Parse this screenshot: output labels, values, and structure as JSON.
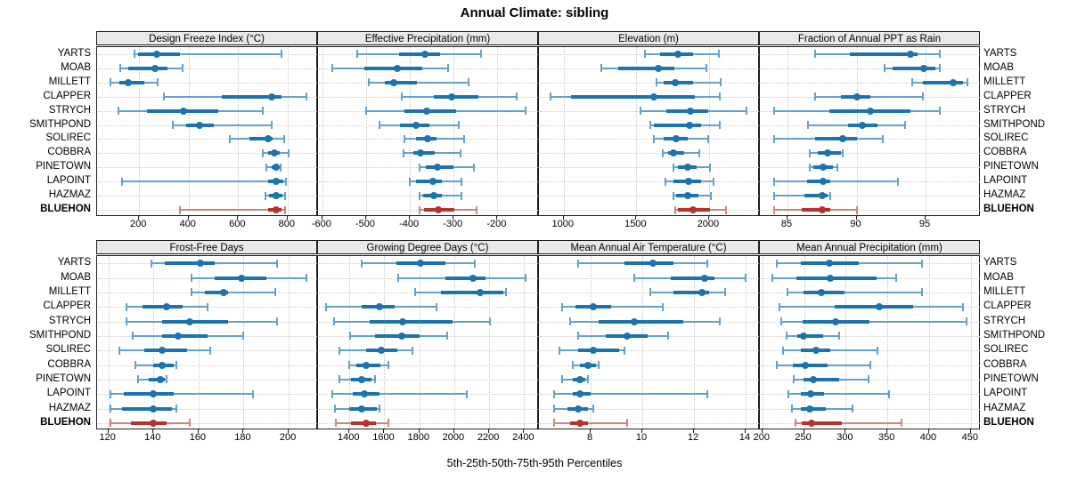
{
  "title": "Annual Climate: sibling",
  "caption": "5th-25th-50th-75th-95th Percentiles",
  "sites": [
    "YARTS",
    "MOAB",
    "MILLETT",
    "CLAPPER",
    "STRYCH",
    "SMITHPOND",
    "SOLIREC",
    "COBBRA",
    "PINETOWN",
    "LAPOINT",
    "HAZMAZ",
    "BLUEHON"
  ],
  "highlight_site": "BLUEHON",
  "colors": {
    "blue": "#1c73ad",
    "blue_light": "#62a2cc",
    "red": "#b6322e",
    "red_light": "#d4837f",
    "grid": "#c9c9c9",
    "strip_bg": "#e9e9e9",
    "border": "#1f1f1f"
  },
  "percentile_levels": [
    5,
    25,
    50,
    75,
    95
  ],
  "chart_data": [
    {
      "type": "dotplot-percentile",
      "row": 0,
      "col": 0,
      "slug": "design-freeze-index",
      "title": "Design Freeze Index (°C)",
      "xlim": [
        30,
        923
      ],
      "ticks": [
        200,
        400,
        600,
        800
      ],
      "values": [
        [
          180,
          195,
          270,
          365,
          775
        ],
        [
          125,
          155,
          265,
          315,
          375
        ],
        [
          85,
          120,
          155,
          220,
          275
        ],
        [
          300,
          535,
          735,
          775,
          875
        ],
        [
          115,
          230,
          380,
          520,
          700
        ],
        [
          335,
          390,
          445,
          500,
          735
        ],
        [
          565,
          645,
          720,
          740,
          785
        ],
        [
          700,
          720,
          745,
          770,
          805
        ],
        [
          715,
          735,
          753,
          762,
          770
        ],
        [
          131,
          723,
          754,
          784,
          795
        ],
        [
          710,
          725,
          754,
          780,
          791
        ],
        [
          365,
          720,
          752,
          775,
          788
        ]
      ]
    },
    {
      "type": "dotplot-percentile",
      "row": 0,
      "col": 1,
      "slug": "effective-precipitation",
      "title": "Effective Precipitation (mm)",
      "xlim": [
        -610,
        -105
      ],
      "ticks": [
        -600,
        -500,
        -400,
        -300,
        -200
      ],
      "values": [
        [
          -520,
          -425,
          -365,
          -330,
          -237
        ],
        [
          -577,
          -505,
          -428,
          -371,
          -313
        ],
        [
          -494,
          -458,
          -436,
          -384,
          -266
        ],
        [
          -418,
          -345,
          -305,
          -243,
          -155
        ],
        [
          -500,
          -413,
          -361,
          -295,
          -136
        ],
        [
          -470,
          -423,
          -385,
          -355,
          -289
        ],
        [
          -413,
          -387,
          -360,
          -340,
          -276
        ],
        [
          -414,
          -393,
          -375,
          -343,
          -284
        ],
        [
          -378,
          -363,
          -338,
          -300,
          -254
        ],
        [
          -401,
          -387,
          -347,
          -326,
          -282
        ],
        [
          -378,
          -370,
          -346,
          -326,
          -283
        ],
        [
          -377,
          -367,
          -336,
          -298,
          -248
        ]
      ]
    },
    {
      "type": "dotplot-percentile",
      "row": 0,
      "col": 2,
      "slug": "elevation",
      "title": "Elevation (m)",
      "xlim": [
        830,
        2350
      ],
      "ticks": [
        1000,
        1500,
        2000
      ],
      "values": [
        [
          1558,
          1661,
          1786,
          1893,
          2065
        ],
        [
          1258,
          1376,
          1651,
          1759,
          1983
        ],
        [
          1641,
          1686,
          1765,
          1893,
          2080
        ],
        [
          907,
          1052,
          1620,
          1904,
          2076
        ],
        [
          1531,
          1704,
          1870,
          1994,
          2259
        ],
        [
          1599,
          1621,
          1865,
          1943,
          2076
        ],
        [
          1620,
          1686,
          1773,
          1851,
          1994
        ],
        [
          1682,
          1717,
          1758,
          1831,
          1934
        ],
        [
          1758,
          1789,
          1851,
          1914,
          2004
        ],
        [
          1701,
          1758,
          1859,
          1943,
          2031
        ],
        [
          1758,
          1775,
          1853,
          1925,
          2014
        ],
        [
          1768,
          1789,
          1893,
          2004,
          2117
        ]
      ]
    },
    {
      "type": "dotplot-percentile",
      "row": 0,
      "col": 3,
      "slug": "fraction-ppt-as-rain",
      "title": "Fraction of Annual PPT as Rain",
      "xlim": [
        83,
        99
      ],
      "ticks": [
        85,
        90,
        95
      ],
      "values": [
        [
          87.0,
          89.5,
          93.9,
          94.4,
          96.0
        ],
        [
          92.0,
          92.6,
          94.9,
          95.7,
          96.0
        ],
        [
          94.0,
          94.8,
          97.0,
          97.7,
          98.0
        ],
        [
          87.0,
          88.9,
          90.0,
          91.0,
          94.8
        ],
        [
          84.0,
          88.0,
          91.0,
          93.9,
          96.0
        ],
        [
          86.5,
          89.4,
          90.4,
          91.5,
          93.5
        ],
        [
          84.0,
          87.0,
          89.0,
          90.0,
          91.9
        ],
        [
          86.6,
          87.2,
          87.9,
          88.9,
          89.0
        ],
        [
          86.6,
          86.9,
          87.6,
          88.3,
          88.6
        ],
        [
          84.0,
          86.4,
          87.6,
          88.1,
          93.0
        ],
        [
          84.0,
          86.2,
          87.5,
          87.9,
          88.1
        ],
        [
          84.0,
          86.0,
          87.5,
          88.1,
          90.0
        ]
      ]
    },
    {
      "type": "dotplot-percentile",
      "row": 1,
      "col": 0,
      "slug": "frost-free-days",
      "title": "Frost-Free Days",
      "xlim": [
        115,
        213
      ],
      "ticks": [
        120,
        140,
        160,
        180,
        200
      ],
      "values": [
        [
          139,
          145,
          161,
          167,
          195
        ],
        [
          157,
          167,
          179,
          190,
          208
        ],
        [
          157,
          163,
          171,
          173,
          194
        ],
        [
          128,
          135,
          146,
          153,
          164
        ],
        [
          128,
          144,
          156,
          173,
          195
        ],
        [
          131,
          144,
          151,
          164,
          180
        ],
        [
          125,
          136,
          144,
          155,
          165
        ],
        [
          132,
          140,
          144,
          149,
          150
        ],
        [
          133,
          138,
          143,
          145,
          146
        ],
        [
          121,
          127,
          140,
          149,
          184
        ],
        [
          121,
          126,
          140,
          148,
          150
        ],
        [
          121,
          130,
          140,
          146,
          156
        ]
      ]
    },
    {
      "type": "dotplot-percentile",
      "row": 1,
      "col": 1,
      "slug": "growing-degree-days",
      "title": "Growing Degree Days (°C)",
      "xlim": [
        1220,
        2485
      ],
      "ticks": [
        1400,
        1600,
        1800,
        2000,
        2200,
        2400
      ],
      "values": [
        [
          1468,
          1667,
          1808,
          1947,
          2118
        ],
        [
          1681,
          1947,
          2105,
          2177,
          2406
        ],
        [
          1777,
          1922,
          2148,
          2280,
          2295
        ],
        [
          1264,
          1468,
          1570,
          1659,
          1896
        ],
        [
          1310,
          1514,
          1706,
          1990,
          2206
        ],
        [
          1403,
          1548,
          1697,
          1803,
          1959
        ],
        [
          1344,
          1497,
          1582,
          1672,
          1760
        ],
        [
          1400,
          1437,
          1493,
          1578,
          1621
        ],
        [
          1341,
          1409,
          1471,
          1528,
          1548
        ],
        [
          1302,
          1420,
          1485,
          1574,
          2070
        ],
        [
          1315,
          1400,
          1468,
          1556,
          1570
        ],
        [
          1323,
          1409,
          1497,
          1553,
          1625
        ]
      ]
    },
    {
      "type": "dotplot-percentile",
      "row": 1,
      "col": 2,
      "slug": "mean-annual-air-temperature",
      "title": "Mean Annual Air Temperature (°C)",
      "xlim": [
        6.0,
        14.55
      ],
      "ticks": [
        8,
        10,
        12,
        14
      ],
      "values": [
        [
          7.5,
          9.3,
          10.4,
          11.2,
          12.5
        ],
        [
          9.7,
          11.1,
          12.4,
          12.8,
          14.0
        ],
        [
          10.3,
          11.2,
          12.3,
          12.6,
          13.2
        ],
        [
          6.9,
          7.4,
          8.1,
          8.8,
          10.8
        ],
        [
          7.2,
          8.3,
          9.7,
          11.6,
          13.0
        ],
        [
          7.5,
          8.6,
          9.4,
          10.2,
          11.0
        ],
        [
          6.8,
          7.5,
          8.1,
          9.1,
          9.3
        ],
        [
          7.3,
          7.6,
          7.9,
          8.2,
          8.3
        ],
        [
          6.9,
          7.3,
          7.6,
          7.8,
          7.9
        ],
        [
          6.6,
          7.3,
          7.6,
          8.0,
          12.5
        ],
        [
          6.6,
          7.1,
          7.5,
          7.9,
          8.1
        ],
        [
          6.6,
          7.2,
          7.6,
          7.9,
          9.4
        ]
      ]
    },
    {
      "type": "dotplot-percentile",
      "row": 1,
      "col": 3,
      "slug": "mean-annual-precipitation",
      "title": "Mean Annual Precipitation (mm)",
      "xlim": [
        197,
        462
      ],
      "ticks": [
        200,
        250,
        300,
        350,
        400,
        450
      ],
      "values": [
        [
          217,
          246,
          280,
          316,
          392
        ],
        [
          212,
          241,
          281,
          337,
          361
        ],
        [
          230,
          249,
          271,
          299,
          392
        ],
        [
          221,
          287,
          340,
          381,
          441
        ],
        [
          223,
          248,
          288,
          328,
          445
        ],
        [
          229,
          242,
          249,
          273,
          292
        ],
        [
          225,
          246,
          264,
          281,
          338
        ],
        [
          217,
          237,
          251,
          278,
          329
        ],
        [
          238,
          249,
          261,
          292,
          327
        ],
        [
          231,
          246,
          258,
          274,
          352
        ],
        [
          236,
          246,
          257,
          276,
          308
        ],
        [
          240,
          247,
          259,
          295,
          367
        ]
      ]
    }
  ]
}
